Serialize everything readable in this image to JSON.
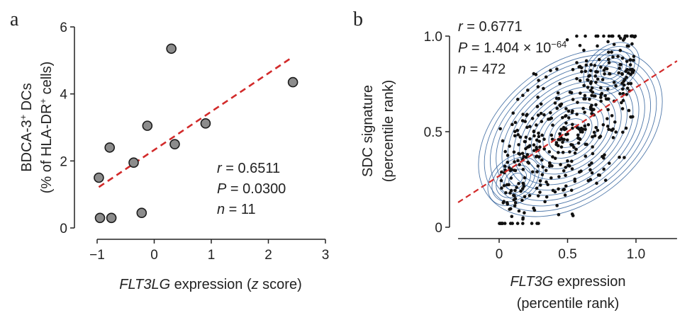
{
  "chart_data": [
    {
      "panel": "a",
      "type": "scatter",
      "xlabel": {
        "italic": "FLT3LG",
        "rest": " expression (",
        "z": "z",
        "end": " score)"
      },
      "ylabel": {
        "line1_pre": "BDCA-3",
        "line1_sup": "+",
        "line1_post": " DCs",
        "line2_pre": "(% of HLA-DR",
        "line2_sup": "+",
        "line2_post": " cells)"
      },
      "xlim": [
        -1,
        3
      ],
      "ylim": [
        0,
        6
      ],
      "xticks": [
        -1,
        0,
        1,
        2,
        3
      ],
      "xtick_labels": [
        "−1",
        "0",
        "1",
        "2",
        "3"
      ],
      "yticks": [
        0,
        2,
        4,
        6
      ],
      "ytick_labels": [
        "0",
        "2",
        "4",
        "6"
      ],
      "points": [
        {
          "x": -0.97,
          "y": 1.5
        },
        {
          "x": -0.95,
          "y": 0.3
        },
        {
          "x": -0.75,
          "y": 0.3
        },
        {
          "x": -0.78,
          "y": 2.4
        },
        {
          "x": -0.36,
          "y": 1.95
        },
        {
          "x": -0.22,
          "y": 0.45
        },
        {
          "x": -0.12,
          "y": 3.05
        },
        {
          "x": 0.3,
          "y": 5.35
        },
        {
          "x": 0.36,
          "y": 2.5
        },
        {
          "x": 0.9,
          "y": 3.12
        },
        {
          "x": 2.43,
          "y": 4.35
        }
      ],
      "fit_line": {
        "x": [
          -0.97,
          2.38
        ],
        "y": [
          1.22,
          5.05
        ],
        "color": "#d22a2a"
      },
      "point_color": "#8c8c8c",
      "stats": {
        "r_label": "r",
        "r_value": " = 0.6511",
        "p_label": "P",
        "p_value": " = 0.0300",
        "n_label": "n",
        "n_value": " = 11"
      }
    },
    {
      "panel": "b",
      "type": "scatter",
      "xlabel": {
        "italic": "FLT3G",
        "rest": " expression",
        "line2": "(percentile rank)"
      },
      "ylabel": {
        "line1": "SDC signature",
        "line2": "(percentile rank)"
      },
      "xlim": [
        -0.35,
        1.35
      ],
      "ylim": [
        -0.02,
        1.05
      ],
      "xticks": [
        0,
        0.5,
        1.0
      ],
      "xtick_labels": [
        "0",
        "0.5",
        "1.0"
      ],
      "yticks": [
        0,
        0.5,
        1.0
      ],
      "ytick_labels": [
        "0",
        "0.5",
        "1.0"
      ],
      "n_points": 472,
      "fit_line": {
        "x": [
          -0.3,
          1.3
        ],
        "y": [
          0.13,
          0.87
        ],
        "color": "#d22a2a"
      },
      "contour_color": "#2f5f9a",
      "point_color": "#111111",
      "stats": {
        "r_label": "r",
        "r_value": " = 0.6771",
        "p_label": "P",
        "p_value": " = 1.404 × 10",
        "p_exp": "−64",
        "n_label": "n",
        "n_value": " = 472"
      }
    }
  ],
  "panel_labels": {
    "a": "a",
    "b": "b"
  }
}
